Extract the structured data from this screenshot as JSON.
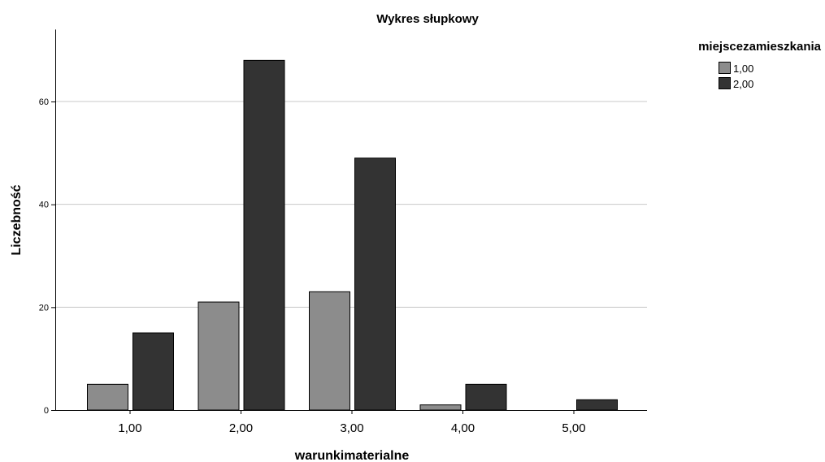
{
  "chart_data": {
    "type": "bar",
    "title": "Wykres słupkowy",
    "xlabel": "warunkimaterialne",
    "ylabel": "Liczebność",
    "categories": [
      "1,00",
      "2,00",
      "3,00",
      "4,00",
      "5,00"
    ],
    "series": [
      {
        "name": "1,00",
        "values": [
          5,
          21,
          23,
          1,
          0
        ],
        "color": "#8c8c8c"
      },
      {
        "name": "2,00",
        "values": [
          15,
          68,
          49,
          5,
          2
        ],
        "color": "#333333"
      }
    ],
    "ylim": [
      0,
      74
    ],
    "yticks": [
      0,
      20,
      40,
      60
    ],
    "ytick_labels": [
      "0",
      "20",
      "40",
      "60"
    ],
    "grid": "horizontal",
    "gridline_color": "#c8c8c8",
    "legend": {
      "title": "miejscezamieszkania",
      "position": "top-right",
      "items": [
        "1,00",
        "2,00"
      ]
    }
  }
}
